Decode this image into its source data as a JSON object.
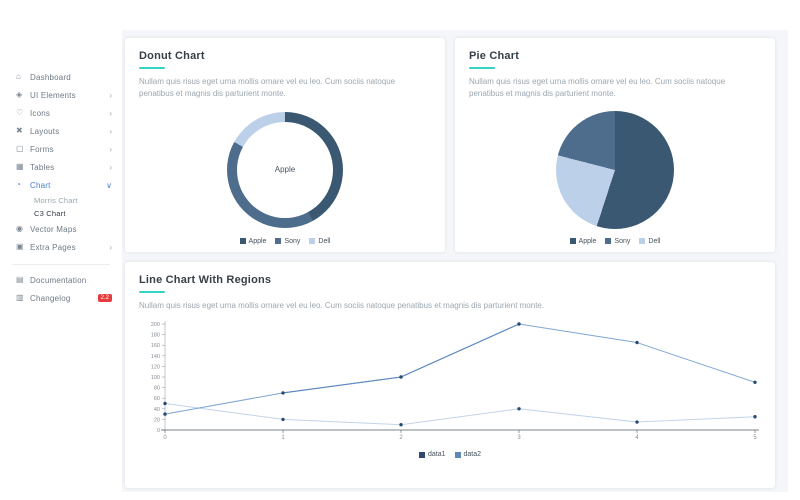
{
  "palette": {
    "accent_teal": "#35d3c7",
    "active_blue": "#4a81d4",
    "badge_red": "#e83c3c",
    "content_background": "#f4f6f9"
  },
  "sidebar": {
    "items": [
      {
        "label": "Dashboard",
        "icon": "home-icon",
        "has_submenu": false,
        "active": false
      },
      {
        "label": "UI Elements",
        "icon": "box-icon",
        "has_submenu": true,
        "active": false
      },
      {
        "label": "Icons",
        "icon": "heart-icon",
        "has_submenu": true,
        "active": false
      },
      {
        "label": "Layouts",
        "icon": "layout-icon",
        "has_submenu": true,
        "active": false
      },
      {
        "label": "Forms",
        "icon": "form-icon",
        "has_submenu": true,
        "active": false
      },
      {
        "label": "Tables",
        "icon": "table-icon",
        "has_submenu": true,
        "active": false
      },
      {
        "label": "Chart",
        "icon": "chart-icon",
        "has_submenu": true,
        "active": true,
        "expanded": true,
        "children": [
          {
            "label": "Morris Chart",
            "active": false
          },
          {
            "label": "C3 Chart",
            "active": true
          }
        ]
      },
      {
        "label": "Vector Maps",
        "icon": "map-pin-icon",
        "has_submenu": false,
        "active": false
      },
      {
        "label": "Extra Pages",
        "icon": "pages-icon",
        "has_submenu": true,
        "active": false
      }
    ],
    "footer_items": [
      {
        "label": "Documentation",
        "icon": "book-icon"
      },
      {
        "label": "Changelog",
        "icon": "list-icon",
        "badge": "2.2"
      }
    ]
  },
  "cards": {
    "donut": {
      "title": "Donut Chart",
      "description": "Nullam quis risus eget urna mollis ornare vel eu leo. Cum sociis natoque penatibus et magnis dis parturient monte.",
      "center_label": "Apple"
    },
    "pie": {
      "title": "Pie Chart",
      "description": "Nullam quis risus eget urna mollis ornare vel eu leo. Cum sociis natoque penatibus et magnis dis parturient monte."
    },
    "line": {
      "title": "Line Chart With Regions",
      "description": "Nullam quis risus eget urna mollis ornare vel eu leo. Cum sociis natoque penatibus et magnis dis parturient monte."
    }
  },
  "chart_data": [
    {
      "type": "pie",
      "variant": "donut",
      "title": "Donut Chart",
      "labels": [
        "Apple",
        "Sony",
        "Dell"
      ],
      "values": [
        42,
        41,
        17
      ],
      "colors": [
        "#3a5872",
        "#4e6d8c",
        "#bcd0ea"
      ],
      "center_label": "Apple",
      "legend_position": "bottom"
    },
    {
      "type": "pie",
      "variant": "pie",
      "title": "Pie Chart",
      "labels": [
        "Apple",
        "Sony",
        "Dell"
      ],
      "values": [
        55,
        21,
        24
      ],
      "colors": [
        "#3a5872",
        "#4e6d8c",
        "#bcd0ea"
      ],
      "legend_position": "bottom"
    },
    {
      "type": "line",
      "title": "Line Chart With Regions",
      "x": [
        0,
        1,
        2,
        3,
        4,
        5
      ],
      "series": [
        {
          "name": "data1",
          "values": [
            30,
            70,
            100,
            200,
            165,
            90
          ],
          "color": "#7da5d4",
          "region_color": "#5c88c0",
          "legend_color": "#2d4a6d"
        },
        {
          "name": "data2",
          "values": [
            50,
            20,
            10,
            40,
            15,
            25
          ],
          "color": "#c2d4e8",
          "region_color": "#c2d4e8",
          "legend_color": "#5e87b5"
        }
      ],
      "ylim": [
        0,
        200
      ],
      "ytick_step": 20,
      "marker_color": "#2b4a6f",
      "legend_position": "bottom",
      "grid": false
    }
  ]
}
